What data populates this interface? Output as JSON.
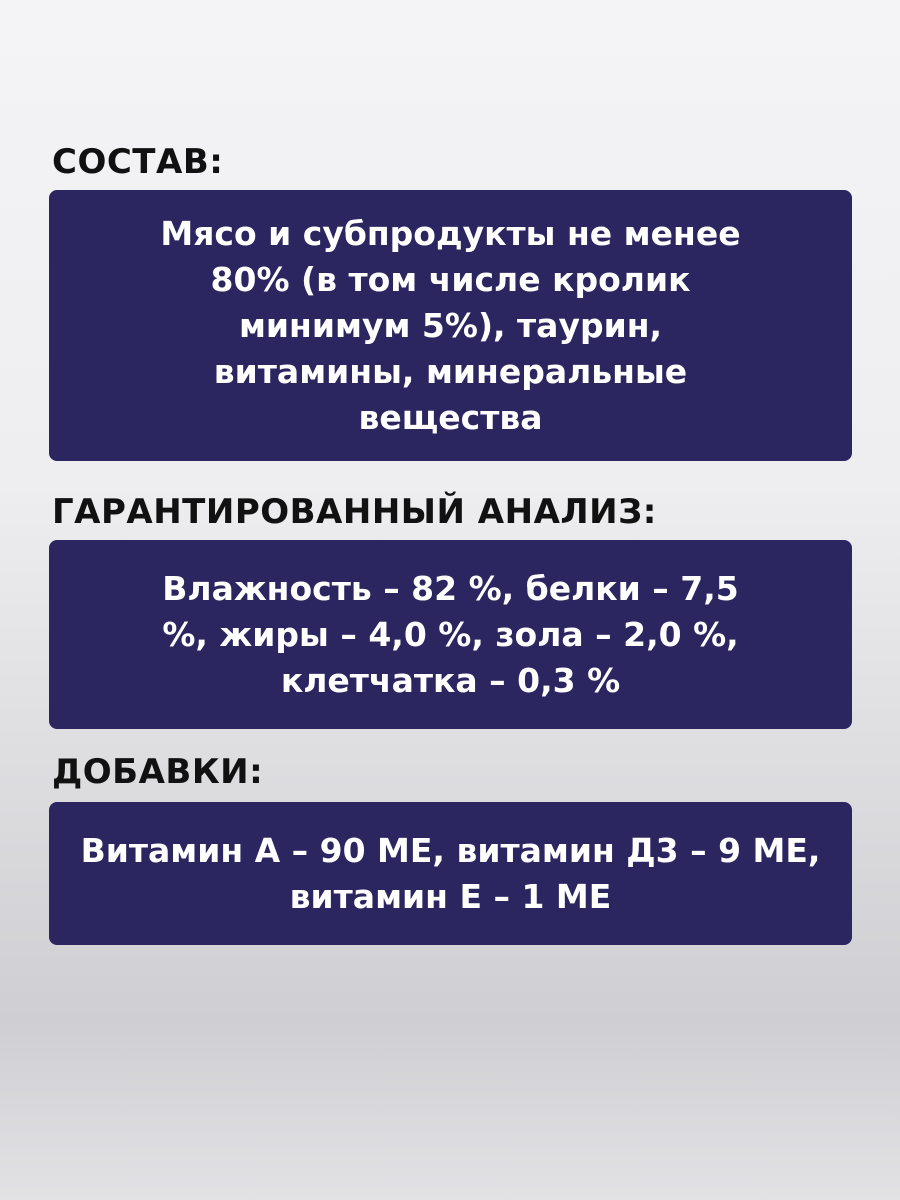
{
  "sections": [
    {
      "title": "СОСТАВ:",
      "text": "Мясо и субпродукты не менее 80% (в том числе кролик минимум 5%), таурин, витамины, минеральные вещества"
    },
    {
      "title": "ГАРАНТИРОВАННЫЙ АНАЛИЗ:",
      "text": "Влажность – 82 %, белки – 7,5 %, жиры – 4,0 %, зола – 2,0 %, клетчатка – 0,3 %"
    },
    {
      "title": "ДОБАВКИ:",
      "text": "Витамин А – 90 МЕ, витамин Д3 – 9 МЕ, витамин Е – 1 МЕ"
    }
  ],
  "colors": {
    "box": "#2b2560",
    "heading": "#111111"
  }
}
